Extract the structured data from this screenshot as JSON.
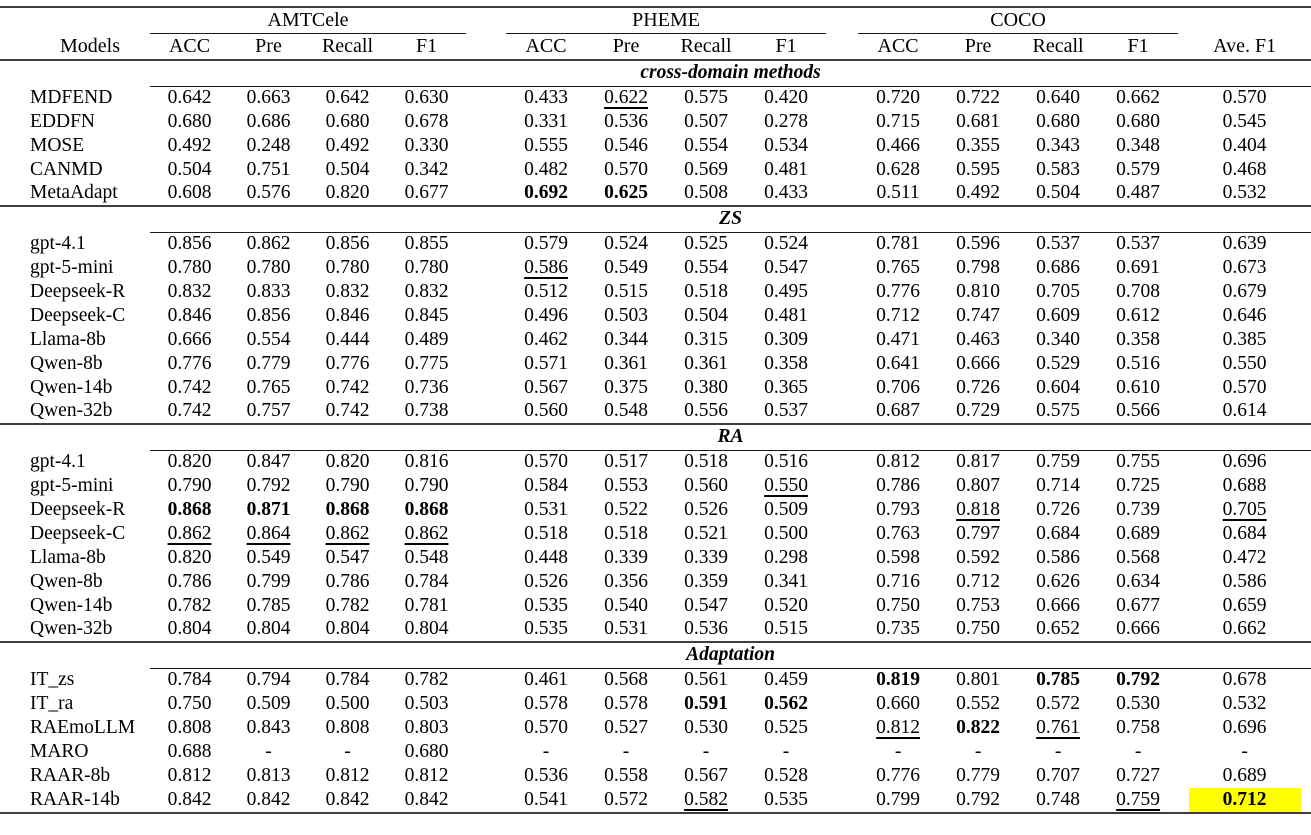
{
  "table": {
    "groups": [
      "AMTCele",
      "PHEME",
      "COCO"
    ],
    "models_header": "Models",
    "metrics": [
      "ACC",
      "Pre",
      "Recall",
      "F1"
    ],
    "ave_header": "Ave. F1",
    "highlight_color": "#ffff00",
    "sections": [
      {
        "title": "cross-domain methods",
        "rows": [
          {
            "model": "MDFEND",
            "cells": [
              "0.642",
              "0.663",
              "0.642",
              "0.630",
              "0.433",
              {
                "t": "0.622",
                "u": true
              },
              "0.575",
              "0.420",
              "0.720",
              "0.722",
              "0.640",
              "0.662",
              "0.570"
            ]
          },
          {
            "model": "EDDFN",
            "cells": [
              "0.680",
              "0.686",
              "0.680",
              "0.678",
              "0.331",
              "0.536",
              "0.507",
              "0.278",
              "0.715",
              "0.681",
              "0.680",
              "0.680",
              "0.545"
            ]
          },
          {
            "model": "MOSE",
            "cells": [
              "0.492",
              "0.248",
              "0.492",
              "0.330",
              "0.555",
              "0.546",
              "0.554",
              "0.534",
              "0.466",
              "0.355",
              "0.343",
              "0.348",
              "0.404"
            ]
          },
          {
            "model": "CANMD",
            "cells": [
              "0.504",
              "0.751",
              "0.504",
              "0.342",
              "0.482",
              "0.570",
              "0.569",
              "0.481",
              "0.628",
              "0.595",
              "0.583",
              "0.579",
              "0.468"
            ]
          },
          {
            "model": "MetaAdapt",
            "cells": [
              "0.608",
              "0.576",
              "0.820",
              "0.677",
              {
                "t": "0.692",
                "b": true
              },
              {
                "t": "0.625",
                "b": true
              },
              "0.508",
              "0.433",
              "0.511",
              "0.492",
              "0.504",
              "0.487",
              "0.532"
            ]
          }
        ]
      },
      {
        "title": "ZS",
        "rows": [
          {
            "model": "gpt-4.1",
            "cells": [
              "0.856",
              "0.862",
              "0.856",
              "0.855",
              "0.579",
              "0.524",
              "0.525",
              "0.524",
              "0.781",
              "0.596",
              "0.537",
              "0.537",
              "0.639"
            ]
          },
          {
            "model": "gpt-5-mini",
            "cells": [
              "0.780",
              "0.780",
              "0.780",
              "0.780",
              {
                "t": "0.586",
                "u": true
              },
              "0.549",
              "0.554",
              "0.547",
              "0.765",
              "0.798",
              "0.686",
              "0.691",
              "0.673"
            ]
          },
          {
            "model": "Deepseek-R",
            "cells": [
              "0.832",
              "0.833",
              "0.832",
              "0.832",
              "0.512",
              "0.515",
              "0.518",
              "0.495",
              "0.776",
              "0.810",
              "0.705",
              "0.708",
              "0.679"
            ]
          },
          {
            "model": "Deepseek-C",
            "cells": [
              "0.846",
              "0.856",
              "0.846",
              "0.845",
              "0.496",
              "0.503",
              "0.504",
              "0.481",
              "0.712",
              "0.747",
              "0.609",
              "0.612",
              "0.646"
            ]
          },
          {
            "model": "Llama-8b",
            "cells": [
              "0.666",
              "0.554",
              "0.444",
              "0.489",
              "0.462",
              "0.344",
              "0.315",
              "0.309",
              "0.471",
              "0.463",
              "0.340",
              "0.358",
              "0.385"
            ]
          },
          {
            "model": "Qwen-8b",
            "cells": [
              "0.776",
              "0.779",
              "0.776",
              "0.775",
              "0.571",
              "0.361",
              "0.361",
              "0.358",
              "0.641",
              "0.666",
              "0.529",
              "0.516",
              "0.550"
            ]
          },
          {
            "model": "Qwen-14b",
            "cells": [
              "0.742",
              "0.765",
              "0.742",
              "0.736",
              "0.567",
              "0.375",
              "0.380",
              "0.365",
              "0.706",
              "0.726",
              "0.604",
              "0.610",
              "0.570"
            ]
          },
          {
            "model": "Qwen-32b",
            "cells": [
              "0.742",
              "0.757",
              "0.742",
              "0.738",
              "0.560",
              "0.548",
              "0.556",
              "0.537",
              "0.687",
              "0.729",
              "0.575",
              "0.566",
              "0.614"
            ]
          }
        ]
      },
      {
        "title": "RA",
        "rows": [
          {
            "model": "gpt-4.1",
            "cells": [
              "0.820",
              "0.847",
              "0.820",
              "0.816",
              "0.570",
              "0.517",
              "0.518",
              "0.516",
              "0.812",
              "0.817",
              "0.759",
              "0.755",
              "0.696"
            ]
          },
          {
            "model": "gpt-5-mini",
            "cells": [
              "0.790",
              "0.792",
              "0.790",
              "0.790",
              "0.584",
              "0.553",
              "0.560",
              {
                "t": "0.550",
                "u": true
              },
              "0.786",
              "0.807",
              "0.714",
              "0.725",
              "0.688"
            ]
          },
          {
            "model": "Deepseek-R",
            "cells": [
              {
                "t": "0.868",
                "b": true
              },
              {
                "t": "0.871",
                "b": true
              },
              {
                "t": "0.868",
                "b": true
              },
              {
                "t": "0.868",
                "b": true
              },
              "0.531",
              "0.522",
              "0.526",
              "0.509",
              "0.793",
              {
                "t": "0.818",
                "u": true
              },
              "0.726",
              "0.739",
              {
                "t": "0.705",
                "u": true
              }
            ]
          },
          {
            "model": "Deepseek-C",
            "cells": [
              {
                "t": "0.862",
                "u": true
              },
              {
                "t": "0.864",
                "u": true
              },
              {
                "t": "0.862",
                "u": true
              },
              {
                "t": "0.862",
                "u": true
              },
              "0.518",
              "0.518",
              "0.521",
              "0.500",
              "0.763",
              "0.797",
              "0.684",
              "0.689",
              "0.684"
            ]
          },
          {
            "model": "Llama-8b",
            "cells": [
              "0.820",
              "0.549",
              "0.547",
              "0.548",
              "0.448",
              "0.339",
              "0.339",
              "0.298",
              "0.598",
              "0.592",
              "0.586",
              "0.568",
              "0.472"
            ]
          },
          {
            "model": "Qwen-8b",
            "cells": [
              "0.786",
              "0.799",
              "0.786",
              "0.784",
              "0.526",
              "0.356",
              "0.359",
              "0.341",
              "0.716",
              "0.712",
              "0.626",
              "0.634",
              "0.586"
            ]
          },
          {
            "model": "Qwen-14b",
            "cells": [
              "0.782",
              "0.785",
              "0.782",
              "0.781",
              "0.535",
              "0.540",
              "0.547",
              "0.520",
              "0.750",
              "0.753",
              "0.666",
              "0.677",
              "0.659"
            ]
          },
          {
            "model": "Qwen-32b",
            "cells": [
              "0.804",
              "0.804",
              "0.804",
              "0.804",
              "0.535",
              "0.531",
              "0.536",
              "0.515",
              "0.735",
              "0.750",
              "0.652",
              "0.666",
              "0.662"
            ]
          }
        ]
      },
      {
        "title": "Adaptation",
        "rows": [
          {
            "model": "IT_zs",
            "cells": [
              "0.784",
              "0.794",
              "0.784",
              "0.782",
              "0.461",
              "0.568",
              "0.561",
              "0.459",
              {
                "t": "0.819",
                "b": true
              },
              "0.801",
              {
                "t": "0.785",
                "b": true
              },
              {
                "t": "0.792",
                "b": true
              },
              "0.678"
            ]
          },
          {
            "model": "IT_ra",
            "cells": [
              "0.750",
              "0.509",
              "0.500",
              "0.503",
              "0.578",
              "0.578",
              {
                "t": "0.591",
                "b": true
              },
              {
                "t": "0.562",
                "b": true
              },
              "0.660",
              "0.552",
              "0.572",
              "0.530",
              "0.532"
            ]
          },
          {
            "model": "RAEmoLLM",
            "cells": [
              "0.808",
              "0.843",
              "0.808",
              "0.803",
              "0.570",
              "0.527",
              "0.530",
              "0.525",
              {
                "t": "0.812",
                "u": true
              },
              {
                "t": "0.822",
                "b": true
              },
              {
                "t": "0.761",
                "u": true
              },
              "0.758",
              "0.696"
            ]
          },
          {
            "model": "MARO",
            "cells": [
              "0.688",
              "-",
              "-",
              "0.680",
              "-",
              "-",
              "-",
              "-",
              "-",
              "-",
              "-",
              "-",
              "-"
            ]
          },
          {
            "model": "RAAR-8b",
            "cells": [
              "0.812",
              "0.813",
              "0.812",
              "0.812",
              "0.536",
              "0.558",
              "0.567",
              "0.528",
              "0.776",
              "0.779",
              "0.707",
              "0.727",
              "0.689"
            ]
          },
          {
            "model": "RAAR-14b",
            "cells": [
              "0.842",
              "0.842",
              "0.842",
              "0.842",
              "0.541",
              "0.572",
              {
                "t": "0.582",
                "u": true
              },
              "0.535",
              "0.799",
              "0.792",
              "0.748",
              {
                "t": "0.759",
                "u": true
              },
              {
                "t": "0.712",
                "b": true,
                "hl": true
              }
            ]
          }
        ]
      }
    ]
  }
}
